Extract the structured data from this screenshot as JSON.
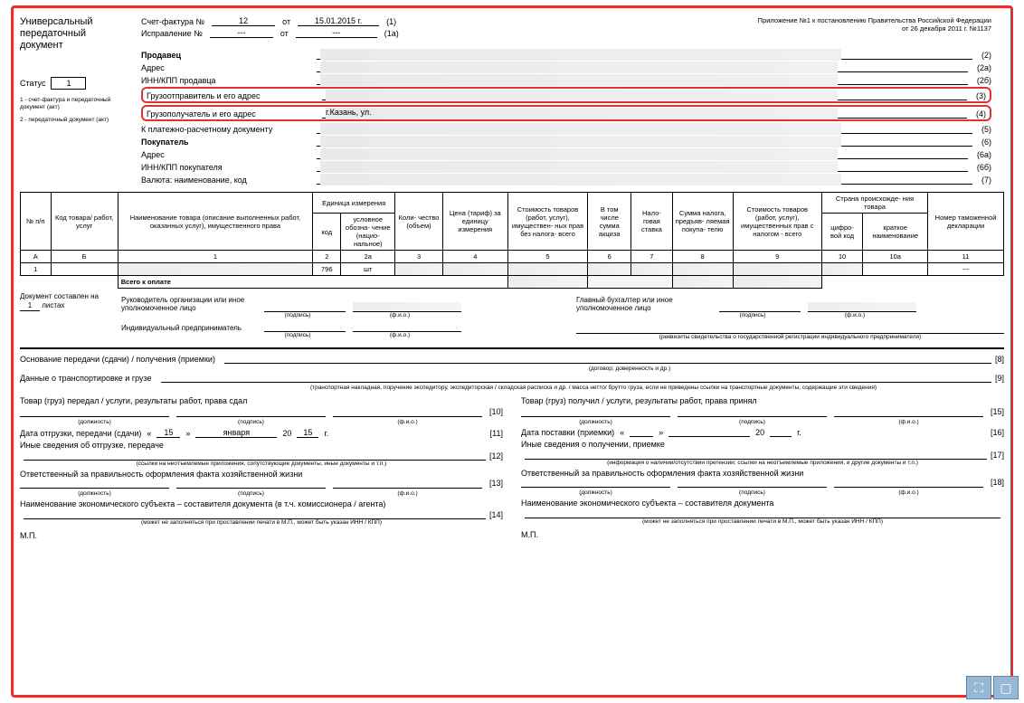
{
  "title": "Универсальный передаточный документ",
  "statusLabel": "Статус",
  "statusValue": "1",
  "statusNote1": "1 - счет-фактура и передаточный документ (акт)",
  "statusNote2": "2 - передаточный документ (акт)",
  "sf": {
    "invoiceLabel": "Счет-фактура №",
    "invoiceNo": "12",
    "invoiceDateLabel": "от",
    "invoiceDate": "15.01.2015 г.",
    "invoiceRef": "(1)",
    "corrLabel": "Исправление №",
    "corrNo": "---",
    "corrDateLabel": "от",
    "corrDate": "---",
    "corrRef": "(1а)"
  },
  "topRight": {
    "line1": "Приложение №1 к постановлению Правительства Российской Федерации",
    "line2": "от 26 декабря 2011 г. №1137"
  },
  "fields": [
    {
      "label": "Продавец",
      "bold": true,
      "ref": "(2)"
    },
    {
      "label": "Адрес",
      "ref": "(2а)"
    },
    {
      "label": "ИНН/КПП продавца",
      "ref": "(2б)"
    },
    {
      "label": "Грузоотправитель и его адрес",
      "ref": "(3)",
      "hi": true
    },
    {
      "label": "Грузополучатель и его адрес",
      "ref": "(4)",
      "hi": true,
      "value": "г.Казань, ул."
    },
    {
      "label": "К платежно-расчетному документу",
      "ref": "(5)"
    },
    {
      "label": "Покупатель",
      "bold": true,
      "ref": "(6)"
    },
    {
      "label": "Адрес",
      "ref": "(6а)"
    },
    {
      "label": "ИНН/КПП покупателя",
      "ref": "(6б)"
    },
    {
      "label": "Валюта: наименование, код",
      "ref": "(7)"
    }
  ],
  "table": {
    "headers": {
      "no": "№ п/п",
      "code": "Код товара/ работ, услуг",
      "name": "Наименование товара (описание выполненных работ, оказанных услуг), имущественного права",
      "unitGroup": "Единица измерения",
      "unitCode": "код",
      "unitName": "условное обозна- чение (нацио- нальное)",
      "qty": "Коли- чество (объем)",
      "price": "Цена (тариф) за единицу измерения",
      "costNoTax": "Стоимость товаров (работ, услуг), имуществен- ных прав без налога- всего",
      "excise": "В том числе сумма акциза",
      "taxRate": "Нало- говая ставка",
      "taxSum": "Сумма налога, предъяв- ляемая покупа- телю",
      "costWithTax": "Стоимость товаров (работ, услуг), имущественных прав с налогом - всего",
      "countryGroup": "Страна происхожде- ния товара",
      "countryCode": "цифро- вой код",
      "countryName": "краткое наименование",
      "decl": "Номер таможенной декларации"
    },
    "letterRow": [
      "А",
      "Б",
      "1",
      "2",
      "2а",
      "3",
      "4",
      "5",
      "6",
      "7",
      "8",
      "9",
      "10",
      "10а",
      "11"
    ],
    "rows": [
      {
        "no": "1",
        "code": "",
        "unitCode": "796",
        "unitName": "шт",
        "decl": "---"
      }
    ],
    "totalLabel": "Всего к оплате"
  },
  "docFooter": {
    "pagesLabel": "Документ составлен на",
    "pagesVal": "1",
    "pagesSuffix": "листах"
  },
  "sig": {
    "headOrg": "Руководитель организации или иное уполномоченное лицо",
    "chiefAcc": "Главный бухгалтер или иное уполномоченное лицо",
    "ip": "Индивидуальный предприниматель",
    "caption_sign": "(подпись)",
    "caption_fio": "(ф.и.о.)",
    "ipCaption": "(реквизиты свидетельства о государственной регистрации индивидуального предпринимателя)"
  },
  "bottom": {
    "basis": "Основание передачи (сдачи) / получения (приемки)",
    "basisRef": "[8]",
    "basisCaption": "(договор; доверенность и др.)",
    "transport": "Данные о транспортировке и грузе",
    "transportRef": "[9]",
    "transportCaption": "(транспортная накладная, поручение экспедитору, экспедиторская / складская расписка и др. / масса нетто/ брутто груза, если не приведены ссылки на транспортные документы, содержащие эти сведения)",
    "left": {
      "gave": "Товар (груз) передал / услуги, результаты работ, права сдал",
      "gaveRef": "[10]",
      "pos": "(должность)",
      "sign": "(подпись)",
      "fio": "(ф.и.о.)",
      "dateLabel": "Дата отгрузки, передачи (сдачи)",
      "dateDay": "15",
      "dateMonth": "января",
      "dateYearPrefix": "20",
      "dateYear": "15",
      "dateSuffix": "г.",
      "dateRef": "[11]",
      "other": "Иные сведения об отгрузке, передаче",
      "otherRef": "[12]",
      "otherCaption": "(ссылки на неотъемлемые приложения, сопутствующие документы, иные документы и т.п.)",
      "resp": "Ответственный за правильность оформления факта хозяйственной жизни",
      "respRef": "[13]",
      "subj": "Наименование экономического субъекта – составителя документа (в т.ч. комиссионера / агента)",
      "subjRef": "[14]",
      "subjCaption": "(может не заполняться при проставлении печати в М.П., может быть указан ИНН / КПП)",
      "mp": "М.П."
    },
    "right": {
      "got": "Товар (груз) получил / услуги, результаты работ, права принял",
      "gotRef": "[15]",
      "dateLabel": "Дата поставки (приемки)",
      "dateYearPrefix": "20",
      "dateSuffix": "г.",
      "dateRef": "[16]",
      "other": "Иные сведения о получении, приемке",
      "otherRef": "[17]",
      "otherCaption": "(информация о наличии/отсутствии претензии; ссылки на неотъемлемые приложения, и другие документы и т.п.)",
      "resp": "Ответственный за правильность оформления факта хозяйственной жизни",
      "respRef": "[18]",
      "subj": "Наименование экономического субъекта – составителя документа",
      "subjCaption": "(может не заполняться при проставлении печати в М.П., может быть указан ИНН / КПП)",
      "mp": "М.П."
    }
  }
}
